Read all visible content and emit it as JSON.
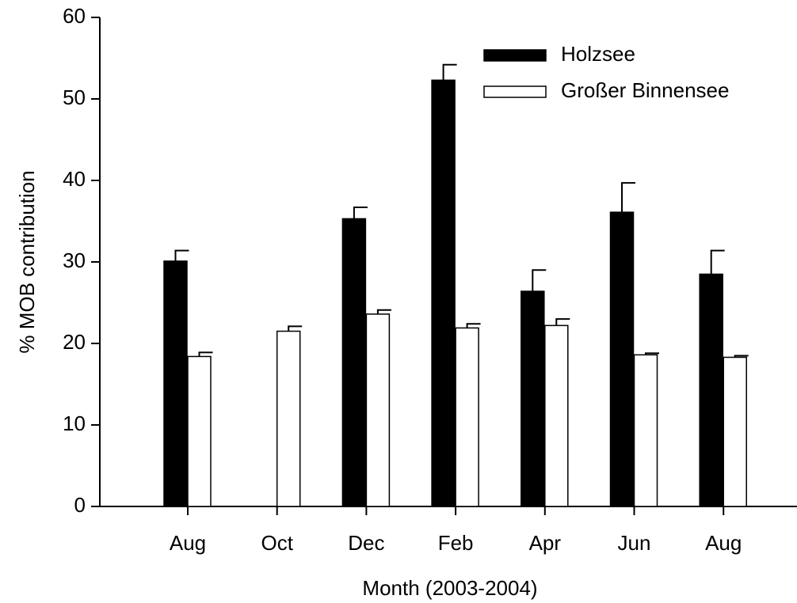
{
  "chart_data": {
    "type": "bar",
    "categories": [
      "Aug",
      "Oct",
      "Dec",
      "Feb",
      "Apr",
      "Jun",
      "Aug"
    ],
    "series": [
      {
        "name": "Holzsee",
        "color": "#000000",
        "values": [
          30.1,
          null,
          35.3,
          52.3,
          26.4,
          36.1,
          28.5
        ],
        "errors": [
          1.3,
          null,
          1.4,
          1.9,
          2.6,
          3.6,
          2.9
        ]
      },
      {
        "name": "Großer Binnensee",
        "color": "#ffffff",
        "values": [
          18.4,
          21.5,
          23.6,
          21.9,
          22.2,
          18.6,
          18.3
        ],
        "errors": [
          0.5,
          0.6,
          0.5,
          0.5,
          0.8,
          0.2,
          0.2
        ]
      }
    ],
    "xlabel": "Month (2003-2004)",
    "ylabel": "% MOB contribution",
    "ylim": [
      0,
      60
    ],
    "yticks": [
      0,
      10,
      20,
      30,
      40,
      50,
      60
    ],
    "legend": "upper right"
  }
}
